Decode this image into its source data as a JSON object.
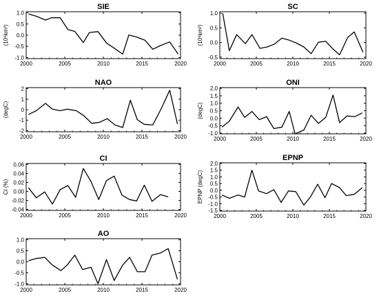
{
  "chart_data": [
    {
      "type": "line",
      "title": "SIE",
      "ylabel": "(10⁶km²)",
      "xlim": [
        2000,
        2020
      ],
      "ylim": [
        -1.05,
        1.05
      ],
      "xticks": [
        2000,
        2005,
        2010,
        2015,
        2020
      ],
      "xtick_labels": [
        "2000",
        "2005",
        "2010",
        "2015",
        "2020"
      ],
      "yticks": [
        -1.0,
        -0.5,
        0.0,
        0.5,
        1.0
      ],
      "ytick_labels": [
        "-1.0",
        "-0.5",
        "0.0",
        "0.5",
        "1.0"
      ],
      "x": [
        2000.3,
        2001.3,
        2002.5,
        2003.3,
        2004.4,
        2005.4,
        2006.3,
        2007.4,
        2008.2,
        2009.3,
        2010.4,
        2011.3,
        2012.5,
        2013.3,
        2014.3,
        2015.4,
        2016.4,
        2017.3,
        2018.6,
        2019.7
      ],
      "series": [
        {
          "values": [
            0.95,
            0.85,
            0.68,
            0.78,
            0.78,
            0.25,
            0.17,
            -0.33,
            0.12,
            0.16,
            -0.35,
            -0.56,
            -0.85,
            0.01,
            -0.08,
            -0.23,
            -0.63,
            -0.48,
            -0.3,
            -0.85
          ]
        }
      ]
    },
    {
      "type": "line",
      "title": "SC",
      "ylabel": "(10⁶km²)",
      "xlim": [
        2000,
        2020
      ],
      "ylim": [
        -0.55,
        1.05
      ],
      "xticks": [
        2000,
        2005,
        2010,
        2015,
        2020
      ],
      "xtick_labels": [
        "2000",
        "2005",
        "2010",
        "2015",
        "2020"
      ],
      "yticks": [
        -0.5,
        0.0,
        0.5,
        1.0
      ],
      "ytick_labels": [
        "-0.5",
        "0.0",
        "0.5",
        "1.0"
      ],
      "x": [
        2000.4,
        2001.3,
        2002.3,
        2003.5,
        2004.4,
        2005.5,
        2006.5,
        2007.5,
        2008.5,
        2009.5,
        2010.5,
        2011.5,
        2012.5,
        2013.5,
        2014.5,
        2015.4,
        2016.4,
        2017.5,
        2018.4,
        2019.6
      ],
      "series": [
        {
          "values": [
            1.0,
            -0.28,
            0.27,
            -0.04,
            0.27,
            -0.2,
            -0.15,
            -0.05,
            0.15,
            0.08,
            -0.02,
            -0.15,
            -0.38,
            0.01,
            0.04,
            -0.2,
            -0.42,
            0.17,
            0.36,
            -0.33
          ]
        }
      ]
    },
    {
      "type": "line",
      "title": "NAO",
      "ylabel": "(degC)",
      "xlim": [
        2000,
        2020
      ],
      "ylim": [
        -2.1,
        2.1
      ],
      "xticks": [
        2000,
        2005,
        2010,
        2015,
        2020
      ],
      "xtick_labels": [
        "2000",
        "2005",
        "2010",
        "2015",
        "2020"
      ],
      "yticks": [
        -2,
        -1,
        0,
        1,
        2
      ],
      "ytick_labels": [
        "-2",
        "-1",
        "0",
        "1",
        "2"
      ],
      "x": [
        2000.3,
        2001.3,
        2002.5,
        2003.4,
        2004.4,
        2005.3,
        2006.5,
        2007.5,
        2008.5,
        2009.5,
        2010.5,
        2011.5,
        2012.5,
        2013.5,
        2014.4,
        2015.3,
        2016.4,
        2017.5,
        2018.6,
        2019.6
      ],
      "series": [
        {
          "values": [
            -0.45,
            -0.1,
            0.6,
            0.05,
            -0.1,
            0.05,
            -0.1,
            -0.6,
            -1.3,
            -1.2,
            -0.85,
            -1.45,
            -1.7,
            0.9,
            -0.95,
            -1.4,
            -1.45,
            0.1,
            1.85,
            -1.35
          ]
        }
      ]
    },
    {
      "type": "line",
      "title": "ONI",
      "ylabel": "(degC)",
      "xlim": [
        2000,
        2020
      ],
      "ylim": [
        -1.05,
        2.05
      ],
      "xticks": [
        2000,
        2005,
        2010,
        2015,
        2020
      ],
      "xtick_labels": [
        "2000",
        "2005",
        "2010",
        "2015",
        "2020"
      ],
      "yticks": [
        -1.0,
        -0.5,
        0.0,
        0.5,
        1.0,
        1.5,
        2.0
      ],
      "ytick_labels": [
        "-1.0",
        "-0.5",
        "0.0",
        "0.5",
        "1.0",
        "1.5",
        "2.0"
      ],
      "x": [
        2000.3,
        2001.3,
        2002.5,
        2003.4,
        2004.4,
        2005.4,
        2006.4,
        2007.4,
        2008.5,
        2009.5,
        2010.3,
        2011.5,
        2012.5,
        2013.5,
        2014.5,
        2015.5,
        2016.4,
        2017.4,
        2018.5,
        2019.5
      ],
      "series": [
        {
          "values": [
            -0.6,
            -0.2,
            0.75,
            0.05,
            0.45,
            -0.1,
            0.1,
            -0.7,
            -0.6,
            0.45,
            -1.05,
            -0.8,
            0.2,
            -0.35,
            0.05,
            1.55,
            -0.3,
            0.15,
            0.1,
            0.35
          ]
        }
      ]
    },
    {
      "type": "line",
      "title": "CI",
      "ylabel": "CI (%)",
      "xlim": [
        2000,
        2020
      ],
      "ylim": [
        -0.042,
        0.062
      ],
      "xticks": [
        2000,
        2005,
        2010,
        2015,
        2020
      ],
      "xtick_labels": [
        "2000",
        "2005",
        "2010",
        "2015",
        "2020"
      ],
      "yticks": [
        -0.04,
        -0.02,
        0.0,
        0.02,
        0.04,
        0.06
      ],
      "ytick_labels": [
        "-0.04",
        "-0.02",
        "0.00",
        "0.02",
        "0.04",
        "0.06"
      ],
      "x": [
        2000.3,
        2001.3,
        2002.4,
        2003.4,
        2004.4,
        2005.4,
        2006.4,
        2007.4,
        2008.4,
        2009.4,
        2010.4,
        2011.4,
        2012.4,
        2013.4,
        2014.3,
        2015.3,
        2016.3,
        2017.4,
        2018.4
      ],
      "series": [
        {
          "values": [
            0.008,
            -0.014,
            -0.001,
            -0.028,
            0.004,
            0.013,
            -0.013,
            0.051,
            0.022,
            -0.018,
            0.024,
            0.034,
            -0.008,
            -0.018,
            -0.021,
            0.014,
            -0.022,
            -0.007,
            -0.012
          ]
        }
      ]
    },
    {
      "type": "line",
      "title": "EPNP",
      "ylabel": "EPNP (degC)",
      "xlim": [
        2000,
        2020
      ],
      "ylim": [
        -1.55,
        2.05
      ],
      "xticks": [
        2000,
        2005,
        2010,
        2015,
        2020
      ],
      "xtick_labels": [
        "2000",
        "2005",
        "2010",
        "2015",
        "2020"
      ],
      "yticks": [
        -1.5,
        -1.0,
        -0.5,
        0.0,
        0.5,
        1.0,
        1.5,
        2.0
      ],
      "ytick_labels": [
        "-1.5",
        "-1.0",
        "-0.5",
        "0.0",
        "0.5",
        "1.0",
        "1.5",
        "2.0"
      ],
      "x": [
        2000.3,
        2001.3,
        2002.5,
        2003.4,
        2004.4,
        2005.3,
        2006.4,
        2007.4,
        2008.4,
        2009.4,
        2010.4,
        2011.5,
        2012.4,
        2013.4,
        2014.4,
        2015.3,
        2016.4,
        2017.3,
        2018.4,
        2019.5
      ],
      "series": [
        {
          "values": [
            -0.35,
            -0.6,
            -0.35,
            -0.5,
            1.5,
            -0.05,
            -0.25,
            0.05,
            -0.9,
            -0.05,
            -0.1,
            -1.1,
            -0.5,
            0.45,
            -0.55,
            0.5,
            0.2,
            -0.4,
            -0.3,
            0.2
          ]
        }
      ]
    },
    {
      "type": "line",
      "title": "AO",
      "ylabel": "",
      "xlim": [
        2000,
        2020
      ],
      "ylim": [
        -1.05,
        1.05
      ],
      "xticks": [
        2000,
        2005,
        2010,
        2015,
        2020
      ],
      "xtick_labels": [
        "2000",
        "2005",
        "2010",
        "2015",
        "2020"
      ],
      "yticks": [
        -1.0,
        -0.5,
        0.0,
        0.5,
        1.0
      ],
      "ytick_labels": [
        "-1.0",
        "-0.5",
        "0.0",
        "0.5",
        "1.0"
      ],
      "x": [
        2000.3,
        2001.3,
        2002.4,
        2003.4,
        2004.5,
        2005.3,
        2006.3,
        2007.3,
        2008.4,
        2009.3,
        2010.4,
        2011.4,
        2012.5,
        2013.4,
        2014.4,
        2015.4,
        2016.3,
        2017.4,
        2018.4,
        2019.6
      ],
      "series": [
        {
          "values": [
            0.05,
            0.15,
            0.2,
            -0.15,
            -0.4,
            -0.15,
            0.3,
            -0.35,
            -0.25,
            -1.0,
            0.1,
            -0.85,
            -0.15,
            0.2,
            -0.45,
            -0.45,
            0.3,
            0.4,
            0.6,
            -0.8
          ]
        }
      ]
    }
  ]
}
